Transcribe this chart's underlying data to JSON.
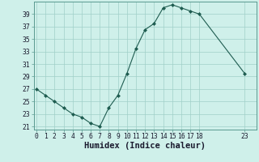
{
  "xlabel": "Humidex (Indice chaleur)",
  "background_color": "#cff0ea",
  "plot_bg_color": "#cff0ea",
  "line_color": "#1e5c50",
  "marker_color": "#1e5c50",
  "grid_color": "#a0cfc8",
  "spine_color": "#5a9a90",
  "x": [
    0,
    1,
    2,
    3,
    4,
    5,
    6,
    7,
    8,
    9,
    10,
    11,
    12,
    13,
    14,
    15,
    16,
    17,
    18,
    23
  ],
  "y": [
    27,
    26,
    25,
    24,
    23,
    22.5,
    21.5,
    21,
    24,
    26,
    29.5,
    33.5,
    36.5,
    37.5,
    40,
    40.5,
    40,
    39.5,
    39,
    29.5
  ],
  "ylim": [
    20.5,
    41.0
  ],
  "xlim": [
    -0.3,
    24.3
  ],
  "yticks": [
    21,
    23,
    25,
    27,
    29,
    31,
    33,
    35,
    37,
    39
  ],
  "xticks": [
    0,
    1,
    2,
    3,
    4,
    5,
    6,
    7,
    8,
    9,
    10,
    11,
    12,
    13,
    14,
    15,
    16,
    17,
    18,
    23
  ],
  "tick_fontsize": 5.8,
  "label_fontsize": 7.5
}
